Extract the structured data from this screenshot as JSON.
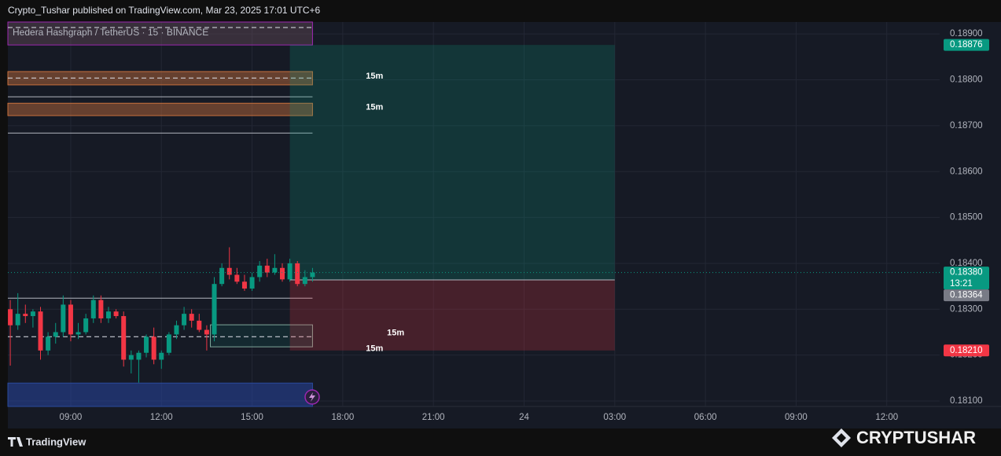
{
  "header": "Crypto_Tushar published on TradingView.com, Mar 23, 2025 17:01 UTC+6",
  "footer": {
    "brand": "TradingView"
  },
  "watermark": "CRYPTUSHAR",
  "chart_data": {
    "type": "candlestick",
    "title": "Hedera Hashgraph / TetherUS · 15 · BINANCE",
    "up_color": "#089981",
    "down_color": "#f23645",
    "grid": true,
    "xlim": [
      6.92,
      37.75
    ],
    "xticks": [
      {
        "value": 9,
        "label": "09:00"
      },
      {
        "value": 12,
        "label": "12:00"
      },
      {
        "value": 15,
        "label": "15:00"
      },
      {
        "value": 18,
        "label": "18:00"
      },
      {
        "value": 21,
        "label": "21:00"
      },
      24,
      {
        "value": 27,
        "label": "03:00"
      },
      {
        "value": 30,
        "label": "06:00"
      },
      {
        "value": 33,
        "label": "09:00"
      },
      {
        "value": 36,
        "label": "12:00"
      }
    ],
    "ylim": [
      0.18088,
      0.18926
    ],
    "yticks": [
      {
        "value": 0.181,
        "label": "0.18100"
      },
      {
        "value": 0.182,
        "label": "0.18200"
      },
      {
        "value": 0.183,
        "label": "0.18300"
      },
      {
        "value": 0.184,
        "label": "0.18400"
      },
      {
        "value": 0.185,
        "label": "0.18500"
      },
      {
        "value": 0.186,
        "label": "0.18600"
      },
      {
        "value": 0.187,
        "label": "0.18700"
      },
      {
        "value": 0.188,
        "label": "0.18800"
      },
      {
        "value": 0.189,
        "label": "0.18900"
      }
    ],
    "x": [
      7,
      7.25,
      7.5,
      7.75,
      8,
      8.25,
      8.5,
      8.75,
      9,
      9.25,
      9.5,
      9.75,
      10,
      10.25,
      10.5,
      10.75,
      11,
      11.25,
      11.5,
      11.75,
      12,
      12.25,
      12.5,
      12.75,
      13,
      13.25,
      13.5,
      13.75,
      14,
      14.25,
      14.5,
      14.75,
      15,
      15.25,
      15.5,
      15.75,
      16,
      16.25,
      16.5,
      16.75,
      17
    ],
    "open": [
      0.183,
      0.18265,
      0.1829,
      0.18285,
      0.18295,
      0.1821,
      0.1824,
      0.1825,
      0.1831,
      0.18245,
      0.1825,
      0.1828,
      0.1832,
      0.1828,
      0.18295,
      0.18285,
      0.1819,
      0.1819,
      0.18205,
      0.1824,
      0.1819,
      0.18205,
      0.18245,
      0.18265,
      0.1829,
      0.18275,
      0.18255,
      0.18245,
      0.18355,
      0.1839,
      0.18375,
      0.1836,
      0.18345,
      0.1837,
      0.18395,
      0.1838,
      0.1839,
      0.18365,
      0.184,
      0.18355,
      0.1837
    ],
    "high": [
      0.1832,
      0.18335,
      0.1831,
      0.183,
      0.18305,
      0.1825,
      0.1827,
      0.1833,
      0.1832,
      0.1827,
      0.1829,
      0.1833,
      0.1833,
      0.18305,
      0.183,
      0.18295,
      0.1821,
      0.1821,
      0.18245,
      0.1826,
      0.1821,
      0.1825,
      0.18275,
      0.18305,
      0.183,
      0.1829,
      0.18265,
      0.1837,
      0.184,
      0.18435,
      0.1839,
      0.18375,
      0.1838,
      0.18405,
      0.1841,
      0.1842,
      0.184,
      0.1841,
      0.18405,
      0.18385,
      0.1839
    ],
    "low": [
      0.18177,
      0.18255,
      0.1827,
      0.1826,
      0.1819,
      0.182,
      0.18225,
      0.1824,
      0.1823,
      0.18235,
      0.18245,
      0.1827,
      0.1827,
      0.1827,
      0.1828,
      0.18175,
      0.1816,
      0.1814,
      0.18195,
      0.1818,
      0.1817,
      0.182,
      0.18235,
      0.18255,
      0.1826,
      0.1825,
      0.1821,
      0.1823,
      0.1835,
      0.18365,
      0.18355,
      0.1834,
      0.1834,
      0.1836,
      0.1837,
      0.18375,
      0.1836,
      0.1836,
      0.1835,
      0.1835,
      0.1836
    ],
    "close": [
      0.18265,
      0.1829,
      0.18285,
      0.18295,
      0.1821,
      0.1824,
      0.1825,
      0.1831,
      0.18245,
      0.1825,
      0.1828,
      0.1832,
      0.1828,
      0.18295,
      0.18285,
      0.1819,
      0.182,
      0.18205,
      0.1824,
      0.1819,
      0.18205,
      0.18245,
      0.18265,
      0.1829,
      0.18275,
      0.18255,
      0.18245,
      0.18355,
      0.1839,
      0.18375,
      0.1836,
      0.18345,
      0.1837,
      0.18395,
      0.1838,
      0.1839,
      0.18365,
      0.184,
      0.18355,
      0.1837,
      0.1838
    ],
    "zones": [
      {
        "from": 0.18876,
        "to": 0.18926,
        "color": "rgba(120,90,100,0.35)",
        "edge": "#9c27b0"
      },
      {
        "from": 0.18789,
        "to": 0.18818,
        "color": "rgba(200,110,60,0.45)",
        "edge": "#c8703c"
      },
      {
        "from": 0.18722,
        "to": 0.18749,
        "color": "rgba(200,110,60,0.45)",
        "edge": "#c8703c"
      },
      {
        "from": 0.18218,
        "to": 0.18266,
        "color": "rgba(8,153,129,0.12)",
        "edge": "#7fa89b",
        "x": 13.62
      },
      {
        "from": 0.18088,
        "to": 0.18139,
        "color": "rgba(40,70,160,0.55)",
        "edge": "#2a4a9c"
      }
    ],
    "zones_end": 17.0,
    "levels": [
      0.18763,
      0.18684,
      0.18324
    ],
    "dashed_levels": [
      0.18914,
      0.18804,
      0.1824
    ],
    "position": {
      "x": [
        16.25,
        27.0
      ],
      "entry": 0.18364,
      "target": 0.18876,
      "stop": 0.1821
    },
    "annotations": [
      {
        "text": "15m",
        "x": 19.05,
        "y": 0.18808
      },
      {
        "text": "15m",
        "x": 19.05,
        "y": 0.1874
      },
      {
        "text": "15m",
        "x": 19.75,
        "y": 0.18248
      },
      {
        "text": "15m",
        "x": 19.05,
        "y": 0.18214
      }
    ],
    "price_tags": [
      {
        "value": 0.18876,
        "label": "0.18876",
        "color": "#089981"
      },
      {
        "value": 0.1838,
        "label": "0.18380",
        "sub": "13:21",
        "color": "#089981"
      },
      {
        "value": 0.18364,
        "label": "0.18364",
        "color": "#787b86"
      },
      {
        "value": 0.1821,
        "label": "0.18210",
        "color": "#f23645"
      }
    ]
  }
}
